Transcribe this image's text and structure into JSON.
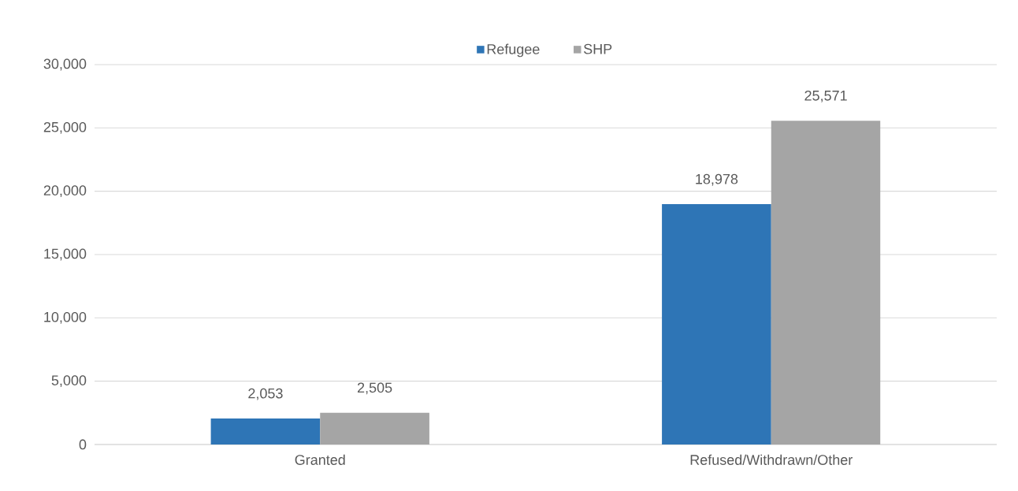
{
  "chart_data": {
    "type": "bar",
    "categories": [
      "Granted",
      "Refused/Withdrawn/Other"
    ],
    "series": [
      {
        "name": "Refugee",
        "color": "#2e75b6",
        "values": [
          2053,
          18978
        ],
        "value_labels": [
          "2,053",
          "18,978"
        ]
      },
      {
        "name": "SHP",
        "color": "#a5a5a5",
        "values": [
          2505,
          25571
        ],
        "value_labels": [
          "2,505",
          "25,571"
        ]
      }
    ],
    "ylim": [
      0,
      30000
    ],
    "yticks": [
      {
        "value": 0,
        "label": "0"
      },
      {
        "value": 5000,
        "label": "5,000"
      },
      {
        "value": 10000,
        "label": "10,000"
      },
      {
        "value": 15000,
        "label": "15,000"
      },
      {
        "value": 20000,
        "label": "20,000"
      },
      {
        "value": 25000,
        "label": "25,000"
      },
      {
        "value": 30000,
        "label": "30,000"
      }
    ],
    "grid": "y",
    "legend": "top"
  }
}
